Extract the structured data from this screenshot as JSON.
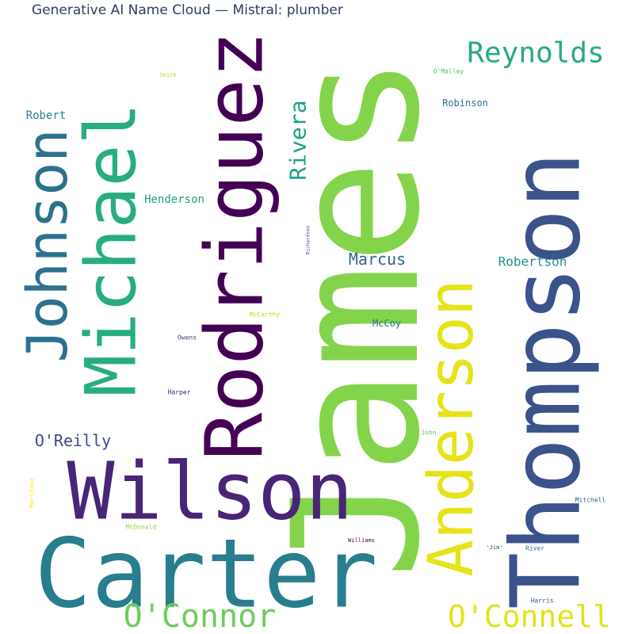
{
  "chart_data": {
    "type": "wordcloud",
    "title": "Generative AI Name Cloud — Mistral: plumber",
    "colormap": "viridis",
    "words": [
      {
        "text": "James",
        "color": "#84d44b"
      },
      {
        "text": "Thompson",
        "color": "#3b528b"
      },
      {
        "text": "Rodriguez",
        "color": "#440154"
      },
      {
        "text": "Carter",
        "color": "#287d8e"
      },
      {
        "text": "Wilson",
        "color": "#482576"
      },
      {
        "text": "Anderson",
        "color": "#e5e419"
      },
      {
        "text": "Michael",
        "color": "#27ad81"
      },
      {
        "text": "Johnson",
        "color": "#2c718e"
      },
      {
        "text": "O'Connor",
        "color": "#6ccd5a"
      },
      {
        "text": "O'Connell",
        "color": "#e2e418"
      },
      {
        "text": "Reynolds",
        "color": "#25ab82"
      },
      {
        "text": "Rivera",
        "color": "#1fa088"
      },
      {
        "text": "Marcus",
        "color": "#31668e"
      },
      {
        "text": "Robertson",
        "color": "#21918c"
      },
      {
        "text": "O'Reilly",
        "color": "#3e4a89"
      },
      {
        "text": "Robert",
        "color": "#24868e"
      },
      {
        "text": "Henderson",
        "color": "#1fa187"
      },
      {
        "text": "Robinson",
        "color": "#2b758e"
      },
      {
        "text": "McCoy",
        "color": "#2a788e"
      },
      {
        "text": "Smith",
        "color": "#c2df23"
      },
      {
        "text": "O'Malley",
        "color": "#4ac16d"
      },
      {
        "text": "Richardson",
        "color": "#3b528b"
      },
      {
        "text": "McCarthy",
        "color": "#b8de29"
      },
      {
        "text": "Owens",
        "color": "#443983"
      },
      {
        "text": "Harper",
        "color": "#481b6d"
      },
      {
        "text": "John",
        "color": "#5ec962"
      },
      {
        "text": "Martinez",
        "color": "#fde725"
      },
      {
        "text": "McDonald",
        "color": "#8fd744"
      },
      {
        "text": "Mitchell",
        "color": "#33638d"
      },
      {
        "text": "Williams",
        "color": "#46085c"
      },
      {
        "text": "'Jim'",
        "color": "#3f4889"
      },
      {
        "text": "River",
        "color": "#2c728e"
      },
      {
        "text": "Harris",
        "color": "#39568c"
      }
    ]
  }
}
